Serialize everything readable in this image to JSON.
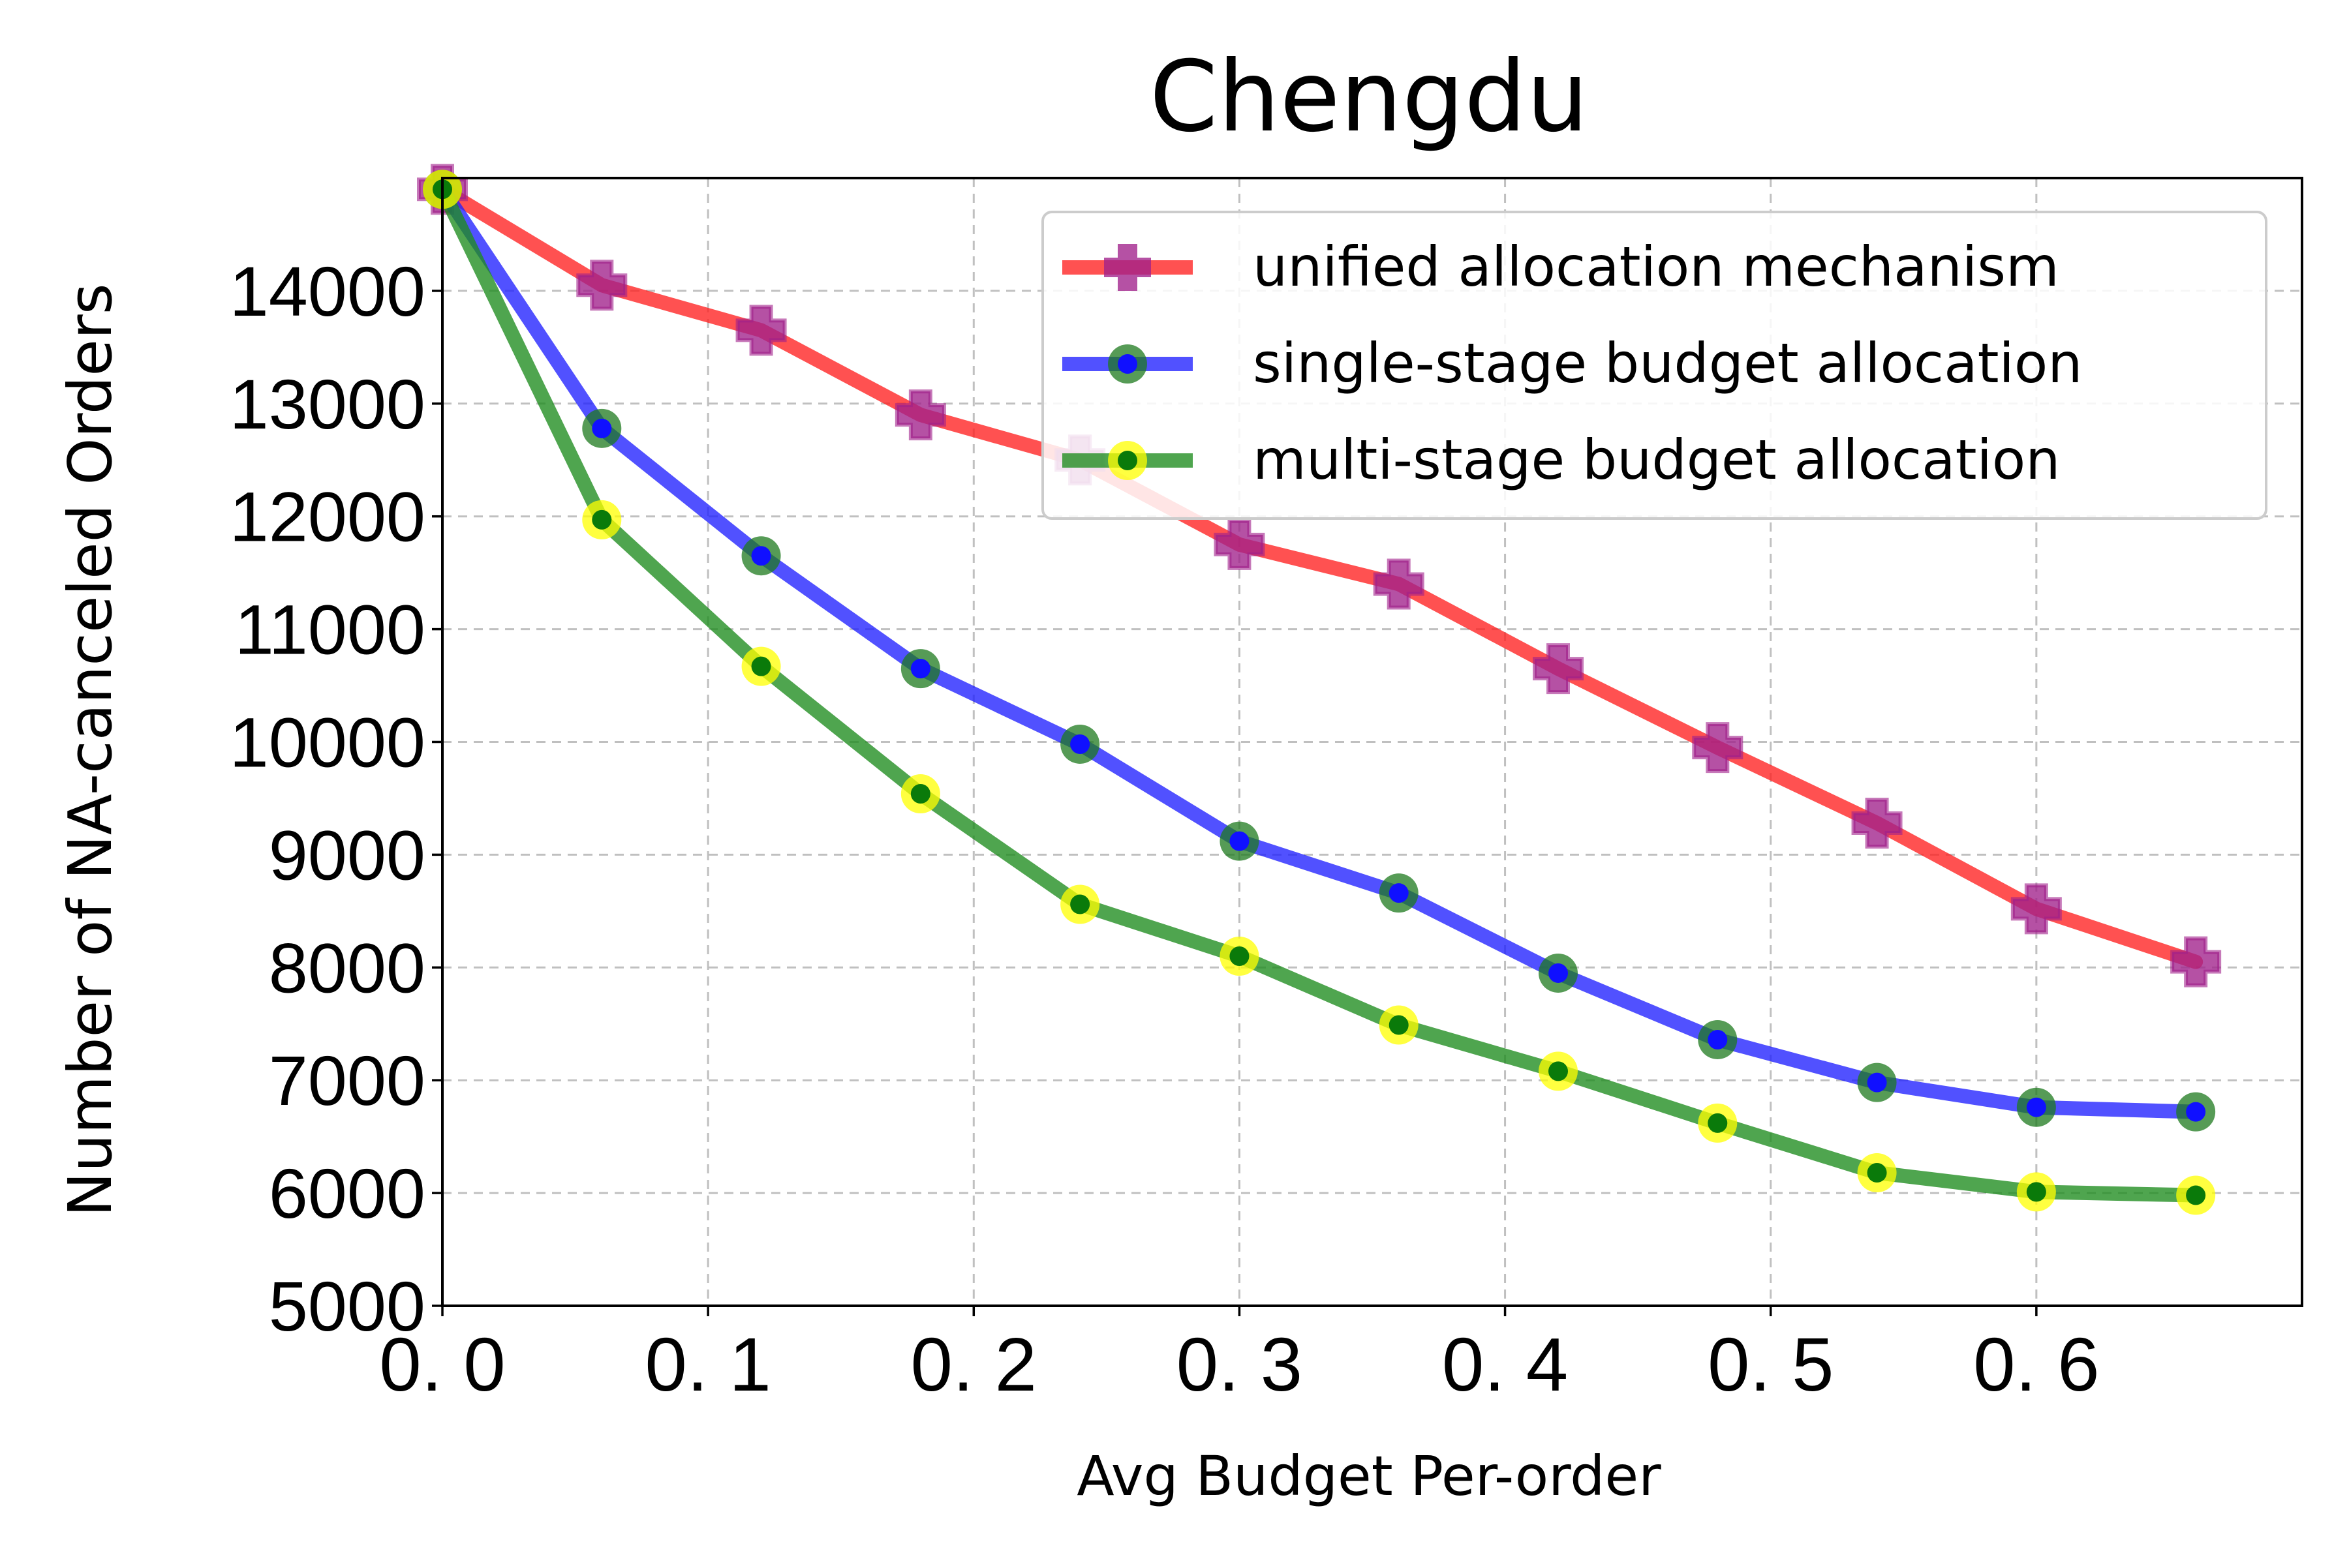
{
  "chart_data": {
    "type": "line",
    "title": "Chengdu",
    "xlabel": "Avg Budget Per-order",
    "ylabel": "Number of NA-canceled Orders",
    "xlim": [
      0,
      0.7
    ],
    "ylim": [
      5000,
      15000
    ],
    "grid": true,
    "legend_position": "top-right",
    "x_ticks": [
      0.0,
      0.1,
      0.2,
      0.3,
      0.4,
      0.5,
      0.6
    ],
    "x_tick_labels": [
      "0. 0",
      "0. 1",
      "0. 2",
      "0. 3",
      "0. 4",
      "0. 5",
      "0. 6"
    ],
    "y_ticks": [
      5000,
      6000,
      7000,
      8000,
      9000,
      10000,
      11000,
      12000,
      13000,
      14000
    ],
    "y_tick_labels": [
      "5000",
      "6000",
      "7000",
      "8000",
      "9000",
      "10000",
      "11000",
      "12000",
      "13000",
      "14000"
    ],
    "x": [
      0.0,
      0.06,
      0.12,
      0.18,
      0.24,
      0.3,
      0.36,
      0.42,
      0.48,
      0.54,
      0.6,
      0.66
    ],
    "series": [
      {
        "name": "unified allocation mechanism",
        "color": "#ff2020",
        "marker": "plus",
        "marker_color": "#a0208a",
        "values": [
          14900,
          14050,
          13650,
          12900,
          12500,
          11750,
          11400,
          10650,
          9950,
          9280,
          8520,
          8050
        ]
      },
      {
        "name": "single-stage budget allocation",
        "color": "#2020ff",
        "marker": "circle",
        "marker_color": "#1e7a1e",
        "marker_center": "#1010ff",
        "values": [
          14900,
          12780,
          11650,
          10650,
          9980,
          9120,
          8660,
          7950,
          7360,
          6980,
          6760,
          6720
        ]
      },
      {
        "name": "multi-stage budget allocation",
        "color": "#1e8c1e",
        "marker": "circle",
        "marker_color": "#ffff00",
        "marker_center": "#0a7a0a",
        "values": [
          14900,
          11970,
          10670,
          9540,
          8560,
          8100,
          7490,
          7080,
          6620,
          6180,
          6010,
          5980
        ]
      }
    ]
  }
}
